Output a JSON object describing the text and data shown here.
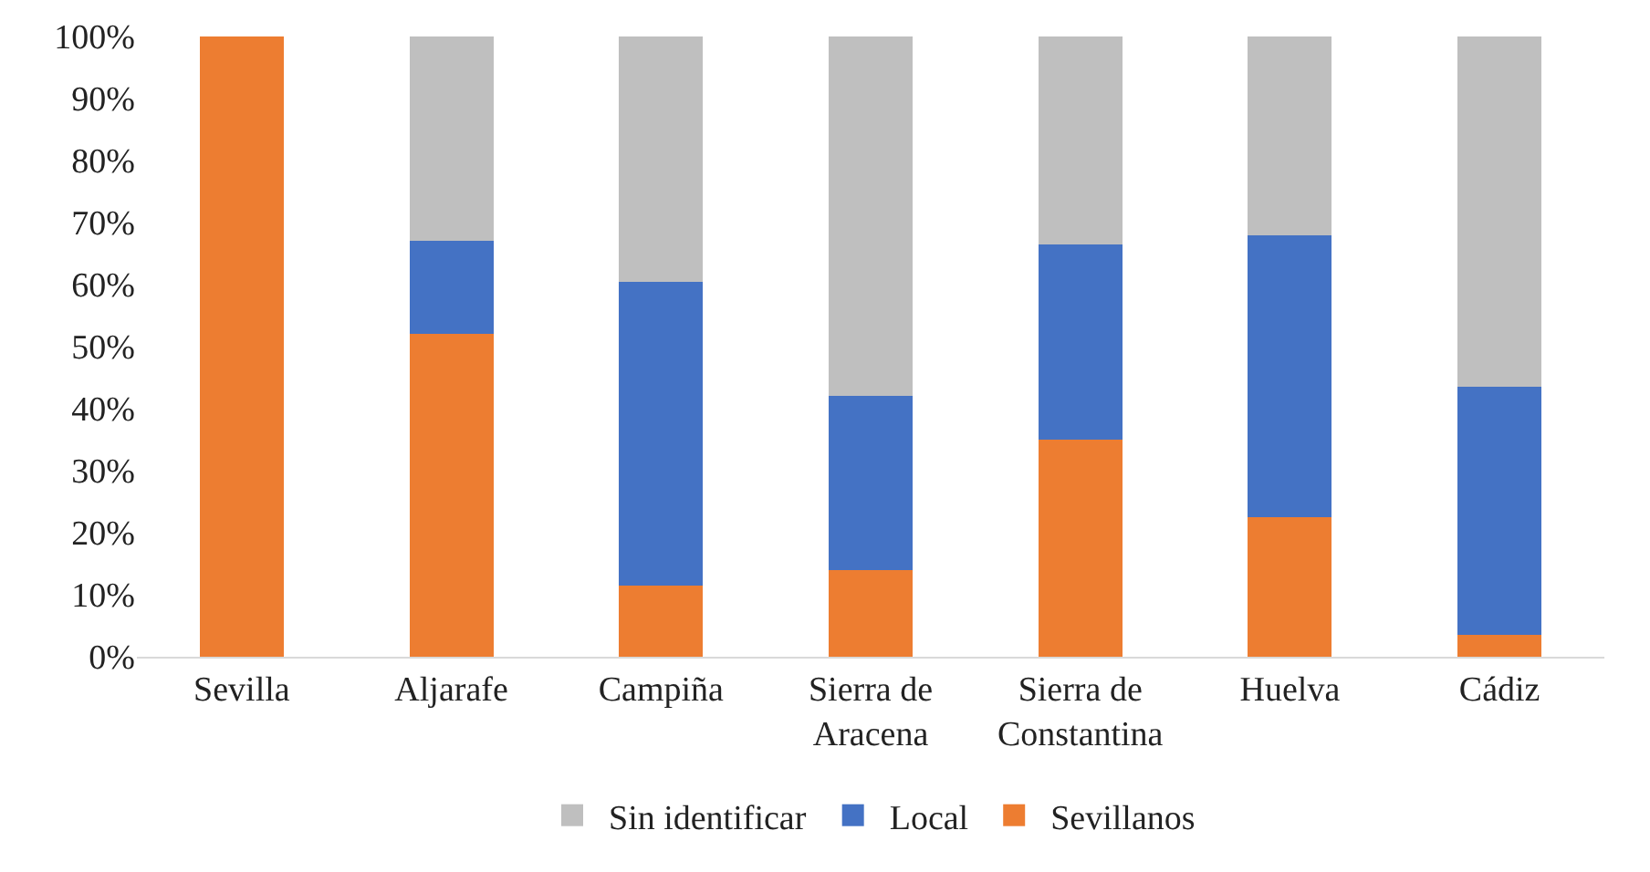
{
  "chart_data": {
    "type": "bar",
    "stacked": true,
    "categories": [
      "Sevilla",
      "Aljarafe",
      "Campiña",
      "Sierra de Aracena",
      "Sierra de Constantina",
      "Huelva",
      "Cádiz"
    ],
    "series": [
      {
        "name": "Sevillanos",
        "color": "#ed7d31",
        "values": [
          100,
          52,
          11.5,
          14,
          35,
          22.5,
          3.5
        ]
      },
      {
        "name": "Local",
        "color": "#4472c4",
        "values": [
          0,
          15,
          49,
          28,
          31.5,
          45.5,
          40
        ]
      },
      {
        "name": "Sin identificar",
        "color": "#bfbfbf",
        "values": [
          0,
          33,
          39.5,
          58,
          33.5,
          32,
          56.5
        ]
      }
    ],
    "ylim": [
      0,
      100
    ],
    "yticks": [
      {
        "value": 0,
        "label": "0%"
      },
      {
        "value": 10,
        "label": "10%"
      },
      {
        "value": 20,
        "label": "20%"
      },
      {
        "value": 30,
        "label": "30%"
      },
      {
        "value": 40,
        "label": "40%"
      },
      {
        "value": 50,
        "label": "50%"
      },
      {
        "value": 60,
        "label": "60%"
      },
      {
        "value": 70,
        "label": "70%"
      },
      {
        "value": 80,
        "label": "80%"
      },
      {
        "value": 90,
        "label": "90%"
      },
      {
        "value": 100,
        "label": "100%"
      }
    ],
    "grid": false,
    "legend": "bottom"
  }
}
